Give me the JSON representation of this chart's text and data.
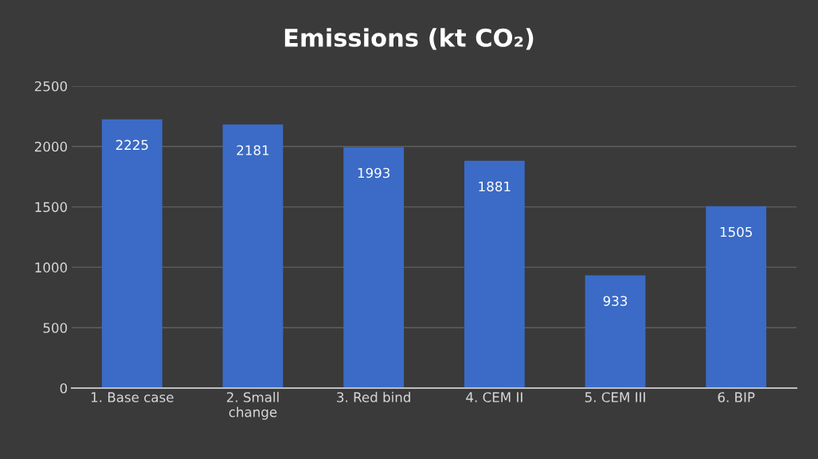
{
  "chart_data": {
    "type": "bar",
    "title": "Emissions (kt CO₂)",
    "categories": [
      "1. Base case",
      "2. Small change",
      "3. Red bind",
      "4. CEM II",
      "5. CEM III",
      "6. BIP"
    ],
    "values": [
      2225,
      2181,
      1993,
      1881,
      933,
      1505
    ],
    "color": "#3b6bc6",
    "ylim": [
      0,
      2500
    ],
    "yticks": [
      0,
      500,
      1000,
      1500,
      2000,
      2500
    ],
    "grid": "y",
    "data_labels": true,
    "legend": false
  }
}
